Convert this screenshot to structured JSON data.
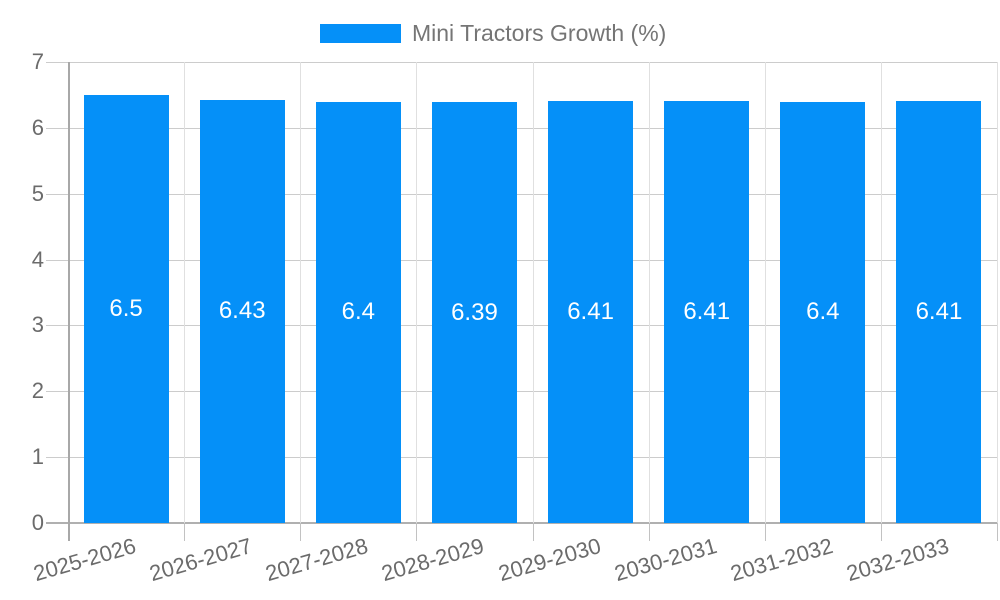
{
  "legend": {
    "items": [
      {
        "label": "Mini Tractors Growth (%)",
        "color": "#0590f8"
      }
    ]
  },
  "chart_data": {
    "type": "bar",
    "title": "Mini Tractors Growth (%)",
    "categories": [
      "2025-2026",
      "2026-2027",
      "2027-2028",
      "2028-2029",
      "2029-2030",
      "2030-2031",
      "2031-2032",
      "2032-2033"
    ],
    "series": [
      {
        "name": "Mini Tractors Growth (%)",
        "values": [
          6.5,
          6.43,
          6.4,
          6.39,
          6.41,
          6.41,
          6.4,
          6.41
        ]
      }
    ],
    "value_labels": [
      "6.5",
      "6.43",
      "6.4",
      "6.39",
      "6.41",
      "6.41",
      "6.4",
      "6.41"
    ],
    "xlabel": "",
    "ylabel": "",
    "ylim": [
      0,
      7
    ],
    "yticks": [
      "0",
      "1",
      "2",
      "3",
      "4",
      "5",
      "6",
      "7"
    ],
    "grid": "on",
    "legend_position": "top",
    "colors": {
      "bar": "#0590f8",
      "bar_value_text": "#ffffff",
      "axis_text": "#6b6b6b",
      "legend_text": "#757575",
      "gridline": "#cccccc",
      "vertical_gridline": "#e0e0e0",
      "axis_line": "#a8a8a8"
    }
  }
}
